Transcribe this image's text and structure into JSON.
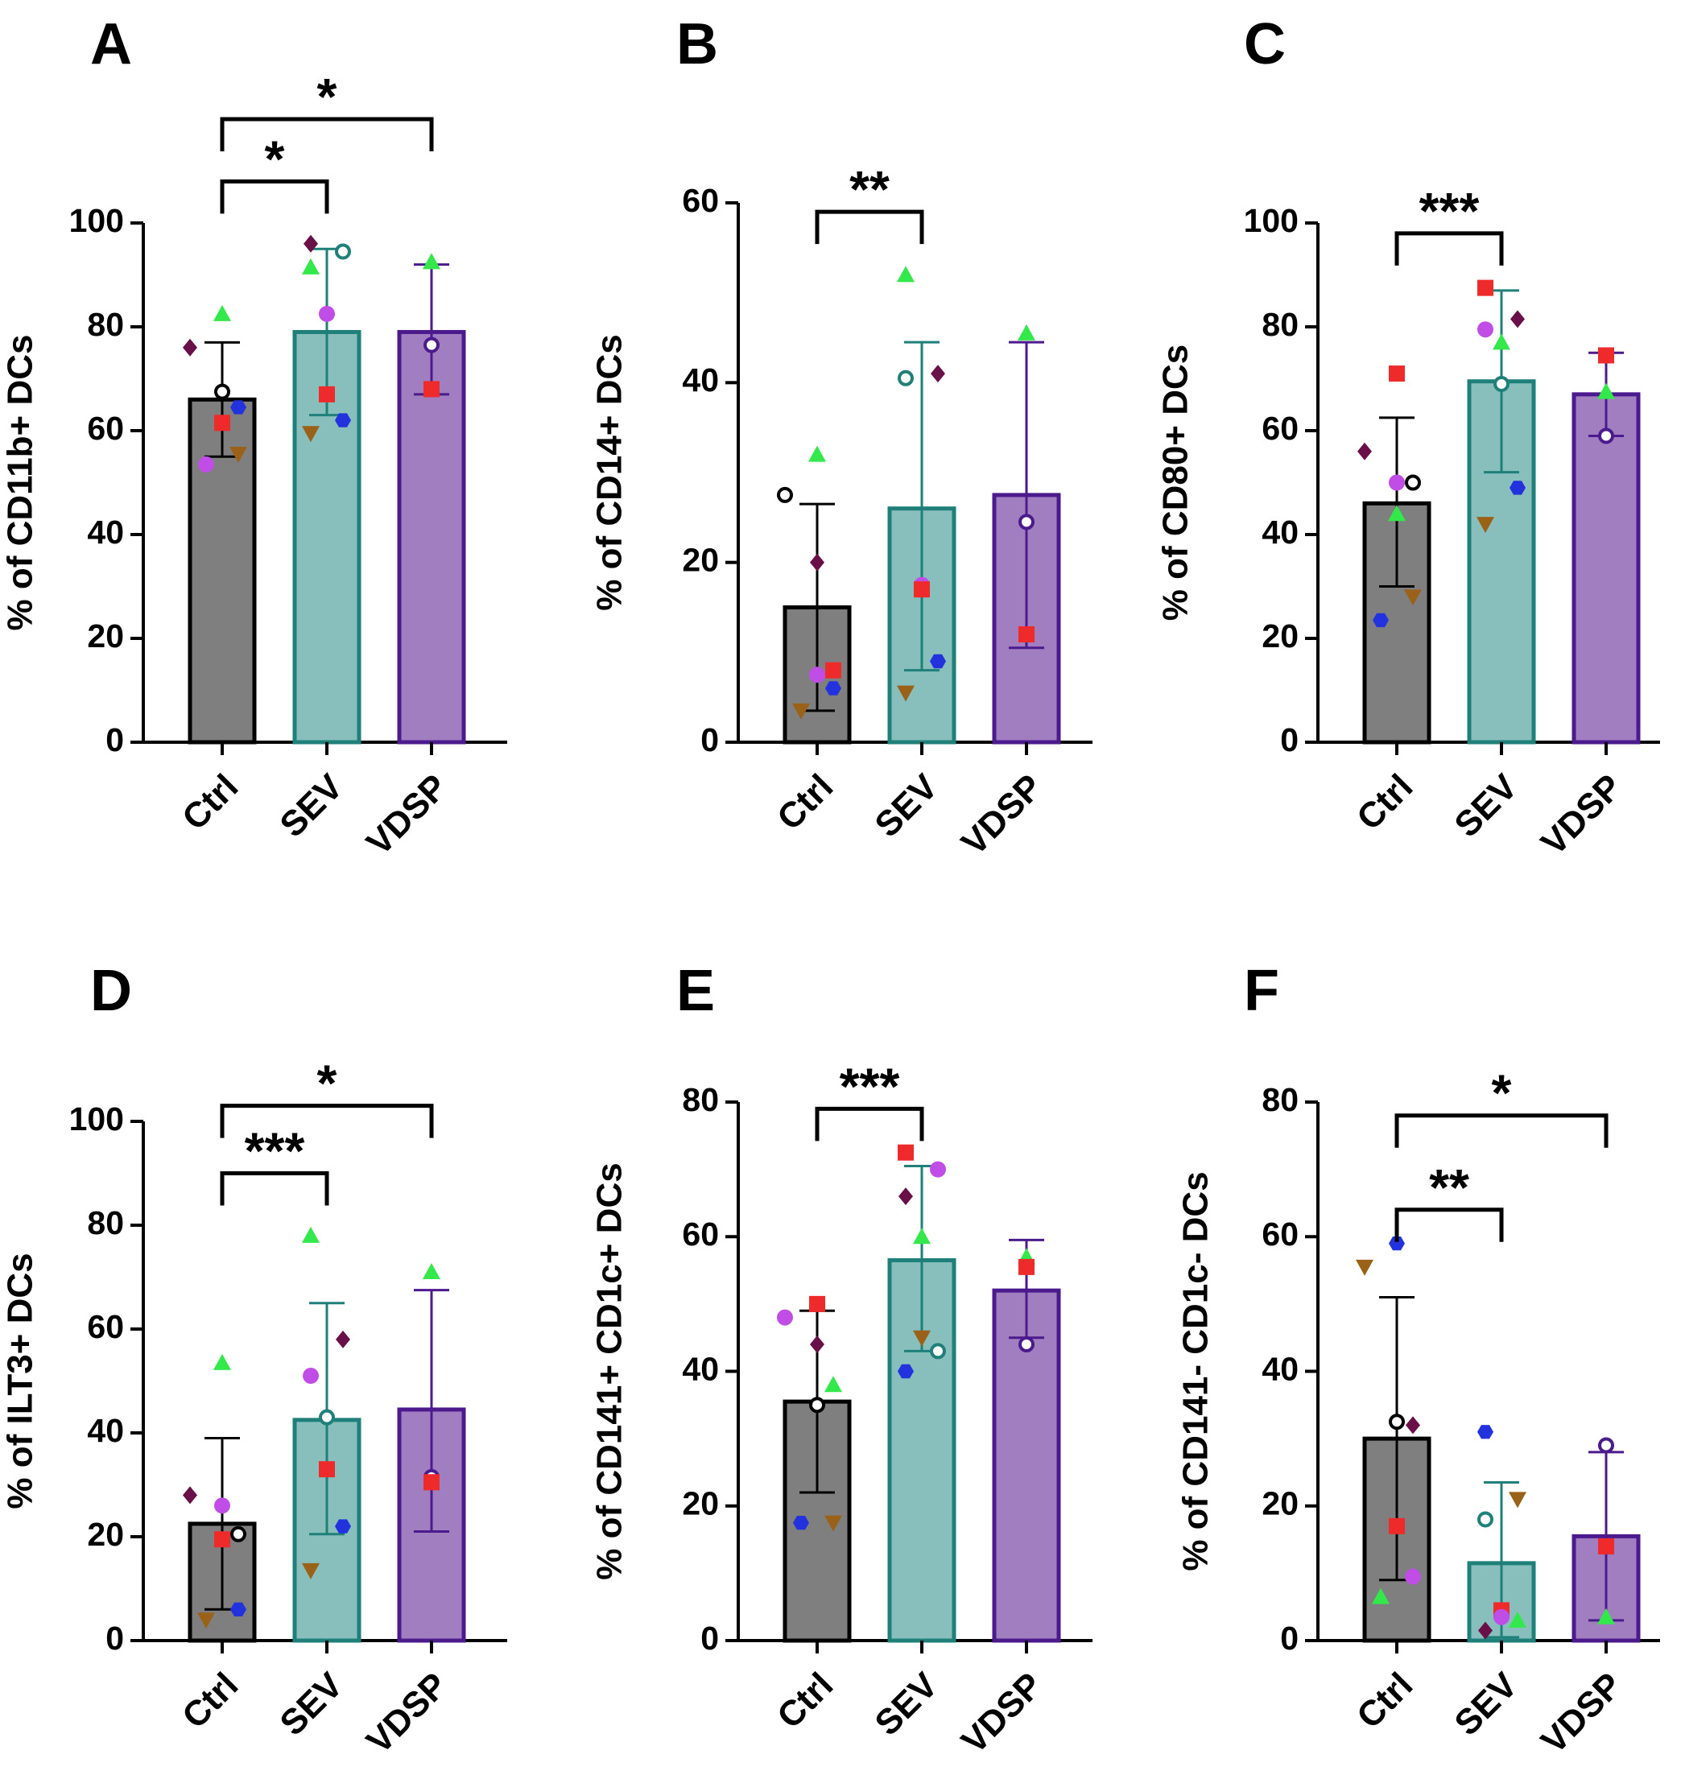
{
  "colors": {
    "ctrl_fill": "#7f7f7f",
    "ctrl_edge": "#000000",
    "sev_fill": "#88bfbc",
    "sev_edge": "#1e8079",
    "vdsp_fill": "#a07ec0",
    "vdsp_edge": "#4b1a8c",
    "red": "#ee2a2a",
    "green": "#33e84a",
    "maroon": "#6a1048",
    "blue": "#2233dd",
    "magenta": "#c04ee6",
    "brown": "#9a6218",
    "teal_open": "#1e8079",
    "purple_open": "#4b1a8c",
    "black_open": "#000000"
  },
  "chart_data": [
    {
      "panel": "A",
      "type": "bar",
      "ylabel": "% of CD11b+ DCs",
      "ylim": [
        0,
        100
      ],
      "yticks": [
        "0",
        "20",
        "40",
        "60",
        "80",
        "100"
      ],
      "categories": [
        "Ctrl",
        "SEV",
        "VDSP"
      ],
      "means": [
        66,
        79,
        79
      ],
      "err_low": [
        55,
        63,
        67
      ],
      "err_high": [
        77,
        95,
        92
      ],
      "points": [
        [
          {
            "shape": "triangle-up",
            "color": "green",
            "value": 82.5
          },
          {
            "shape": "diamond",
            "color": "maroon",
            "value": 76
          },
          {
            "shape": "circle-open",
            "color": "black_open",
            "value": 67.5
          },
          {
            "shape": "hexagon",
            "color": "blue",
            "value": 64.5
          },
          {
            "shape": "square",
            "color": "red",
            "value": 61.5
          },
          {
            "shape": "triangle-down",
            "color": "brown",
            "value": 55.5
          },
          {
            "shape": "circle",
            "color": "magenta",
            "value": 53.5
          }
        ],
        [
          {
            "shape": "diamond",
            "color": "maroon",
            "value": 96
          },
          {
            "shape": "circle-open",
            "color": "teal_open",
            "value": 94.5
          },
          {
            "shape": "triangle-up",
            "color": "green",
            "value": 91.5
          },
          {
            "shape": "circle",
            "color": "magenta",
            "value": 82.5
          },
          {
            "shape": "square",
            "color": "red",
            "value": 67
          },
          {
            "shape": "hexagon",
            "color": "blue",
            "value": 62
          },
          {
            "shape": "triangle-down",
            "color": "brown",
            "value": 59.5
          }
        ],
        [
          {
            "shape": "triangle-up",
            "color": "green",
            "value": 92.5
          },
          {
            "shape": "circle-open",
            "color": "purple_open",
            "value": 76.5
          },
          {
            "shape": "square",
            "color": "red",
            "value": 68
          }
        ]
      ],
      "brackets": [
        {
          "from": "Ctrl",
          "to": "SEV",
          "label": "*",
          "level": 108
        },
        {
          "from": "Ctrl",
          "to": "VDSP",
          "label": "*",
          "level": 120
        }
      ]
    },
    {
      "panel": "B",
      "type": "bar",
      "ylabel": "% of CD14+ DCs",
      "ylim": [
        0,
        60
      ],
      "yticks": [
        "0",
        "20",
        "40",
        "60"
      ],
      "categories": [
        "Ctrl",
        "SEV",
        "VDSP"
      ],
      "means": [
        15,
        26,
        27.5
      ],
      "err_low": [
        3.5,
        8,
        10.5
      ],
      "err_high": [
        26.5,
        44.5,
        44.5
      ],
      "points": [
        [
          {
            "shape": "triangle-up",
            "color": "green",
            "value": 32
          },
          {
            "shape": "circle-open",
            "color": "black_open",
            "value": 27.5
          },
          {
            "shape": "diamond",
            "color": "maroon",
            "value": 20
          },
          {
            "shape": "square",
            "color": "red",
            "value": 8
          },
          {
            "shape": "circle",
            "color": "magenta",
            "value": 7.5
          },
          {
            "shape": "hexagon",
            "color": "blue",
            "value": 6
          },
          {
            "shape": "triangle-down",
            "color": "brown",
            "value": 3.5
          }
        ],
        [
          {
            "shape": "triangle-up",
            "color": "green",
            "value": 52
          },
          {
            "shape": "diamond",
            "color": "maroon",
            "value": 41
          },
          {
            "shape": "circle-open",
            "color": "teal_open",
            "value": 40.5
          },
          {
            "shape": "circle",
            "color": "magenta",
            "value": 17.5
          },
          {
            "shape": "square",
            "color": "red",
            "value": 17
          },
          {
            "shape": "hexagon",
            "color": "blue",
            "value": 9
          },
          {
            "shape": "triangle-down",
            "color": "brown",
            "value": 5.5
          }
        ],
        [
          {
            "shape": "triangle-up",
            "color": "green",
            "value": 45.5
          },
          {
            "shape": "circle-open",
            "color": "purple_open",
            "value": 24.5
          },
          {
            "shape": "square",
            "color": "red",
            "value": 12
          }
        ]
      ],
      "brackets": [
        {
          "from": "Ctrl",
          "to": "SEV",
          "label": "**",
          "level": 59
        }
      ]
    },
    {
      "panel": "C",
      "type": "bar",
      "ylabel": "% of CD80+ DCs",
      "ylim": [
        0,
        100
      ],
      "yticks": [
        "0",
        "20",
        "40",
        "60",
        "80",
        "100"
      ],
      "categories": [
        "Ctrl",
        "SEV",
        "VDSP"
      ],
      "means": [
        46,
        69.5,
        67
      ],
      "err_low": [
        30,
        52,
        59
      ],
      "err_high": [
        62.5,
        87,
        75
      ],
      "points": [
        [
          {
            "shape": "square",
            "color": "red",
            "value": 71
          },
          {
            "shape": "diamond",
            "color": "maroon",
            "value": 56
          },
          {
            "shape": "circle",
            "color": "magenta",
            "value": 50
          },
          {
            "shape": "circle-open",
            "color": "black_open",
            "value": 50
          },
          {
            "shape": "triangle-up",
            "color": "green",
            "value": 44
          },
          {
            "shape": "triangle-down",
            "color": "brown",
            "value": 28
          },
          {
            "shape": "hexagon",
            "color": "blue",
            "value": 23.5
          }
        ],
        [
          {
            "shape": "square",
            "color": "red",
            "value": 87.5
          },
          {
            "shape": "diamond",
            "color": "maroon",
            "value": 81.5
          },
          {
            "shape": "circle",
            "color": "magenta",
            "value": 79.5
          },
          {
            "shape": "triangle-up",
            "color": "green",
            "value": 77
          },
          {
            "shape": "circle-open",
            "color": "teal_open",
            "value": 69
          },
          {
            "shape": "hexagon",
            "color": "blue",
            "value": 49
          },
          {
            "shape": "triangle-down",
            "color": "brown",
            "value": 42
          }
        ],
        [
          {
            "shape": "square",
            "color": "red",
            "value": 74.5
          },
          {
            "shape": "triangle-up",
            "color": "green",
            "value": 67.5
          },
          {
            "shape": "circle-open",
            "color": "purple_open",
            "value": 59
          }
        ]
      ],
      "brackets": [
        {
          "from": "Ctrl",
          "to": "SEV",
          "label": "***",
          "level": 98
        }
      ]
    },
    {
      "panel": "D",
      "type": "bar",
      "ylabel": "% of ILT3+ DCs",
      "ylim": [
        0,
        100
      ],
      "yticks": [
        "0",
        "20",
        "40",
        "60",
        "80",
        "100"
      ],
      "categories": [
        "Ctrl",
        "SEV",
        "VDSP"
      ],
      "means": [
        22.5,
        42.5,
        44.5
      ],
      "err_low": [
        6,
        20.5,
        21
      ],
      "err_high": [
        39,
        65,
        67.5
      ],
      "points": [
        [
          {
            "shape": "triangle-up",
            "color": "green",
            "value": 53.5
          },
          {
            "shape": "diamond",
            "color": "maroon",
            "value": 28
          },
          {
            "shape": "circle",
            "color": "magenta",
            "value": 26
          },
          {
            "shape": "circle-open",
            "color": "black_open",
            "value": 20.5
          },
          {
            "shape": "square",
            "color": "red",
            "value": 19.5
          },
          {
            "shape": "hexagon",
            "color": "blue",
            "value": 6
          },
          {
            "shape": "triangle-down",
            "color": "brown",
            "value": 4
          }
        ],
        [
          {
            "shape": "triangle-up",
            "color": "green",
            "value": 78
          },
          {
            "shape": "diamond",
            "color": "maroon",
            "value": 58
          },
          {
            "shape": "circle",
            "color": "magenta",
            "value": 51
          },
          {
            "shape": "circle-open",
            "color": "teal_open",
            "value": 43
          },
          {
            "shape": "square",
            "color": "red",
            "value": 33
          },
          {
            "shape": "hexagon",
            "color": "blue",
            "value": 22
          },
          {
            "shape": "triangle-down",
            "color": "brown",
            "value": 13.5
          }
        ],
        [
          {
            "shape": "triangle-up",
            "color": "green",
            "value": 71
          },
          {
            "shape": "circle-open",
            "color": "purple_open",
            "value": 31.5
          },
          {
            "shape": "square",
            "color": "red",
            "value": 30.5
          }
        ]
      ],
      "brackets": [
        {
          "from": "Ctrl",
          "to": "SEV",
          "label": "***",
          "level": 90
        },
        {
          "from": "Ctrl",
          "to": "VDSP",
          "label": "*",
          "level": 103
        }
      ]
    },
    {
      "panel": "E",
      "type": "bar",
      "ylabel": "% of CD141+ CD1c+ DCs",
      "ylim": [
        0,
        80
      ],
      "yticks": [
        "0",
        "20",
        "40",
        "60",
        "80"
      ],
      "categories": [
        "Ctrl",
        "SEV",
        "VDSP"
      ],
      "means": [
        35.5,
        56.5,
        52
      ],
      "err_low": [
        22,
        43,
        45
      ],
      "err_high": [
        49,
        70.5,
        59.5
      ],
      "points": [
        [
          {
            "shape": "square",
            "color": "red",
            "value": 50
          },
          {
            "shape": "circle",
            "color": "magenta",
            "value": 48
          },
          {
            "shape": "diamond",
            "color": "maroon",
            "value": 44
          },
          {
            "shape": "triangle-up",
            "color": "green",
            "value": 38
          },
          {
            "shape": "circle-open",
            "color": "black_open",
            "value": 35
          },
          {
            "shape": "triangle-down",
            "color": "brown",
            "value": 17.5
          },
          {
            "shape": "hexagon",
            "color": "blue",
            "value": 17.5
          }
        ],
        [
          {
            "shape": "square",
            "color": "red",
            "value": 72.5
          },
          {
            "shape": "circle",
            "color": "magenta",
            "value": 70
          },
          {
            "shape": "diamond",
            "color": "maroon",
            "value": 66
          },
          {
            "shape": "triangle-up",
            "color": "green",
            "value": 60
          },
          {
            "shape": "triangle-down",
            "color": "brown",
            "value": 45
          },
          {
            "shape": "circle-open",
            "color": "teal_open",
            "value": 43
          },
          {
            "shape": "hexagon",
            "color": "blue",
            "value": 40
          }
        ],
        [
          {
            "shape": "triangle-up",
            "color": "green",
            "value": 57
          },
          {
            "shape": "square",
            "color": "red",
            "value": 55.5
          },
          {
            "shape": "circle-open",
            "color": "purple_open",
            "value": 44
          }
        ]
      ],
      "brackets": [
        {
          "from": "Ctrl",
          "to": "SEV",
          "label": "***",
          "level": 79
        }
      ]
    },
    {
      "panel": "F",
      "type": "bar",
      "ylabel": "% of CD141- CD1c- DCs",
      "ylim": [
        0,
        80
      ],
      "yticks": [
        "0",
        "20",
        "40",
        "60",
        "80"
      ],
      "categories": [
        "Ctrl",
        "SEV",
        "VDSP"
      ],
      "means": [
        30,
        11.5,
        15.5
      ],
      "err_low": [
        9,
        0.5,
        3
      ],
      "err_high": [
        51,
        23.5,
        28
      ],
      "points": [
        [
          {
            "shape": "hexagon",
            "color": "blue",
            "value": 59
          },
          {
            "shape": "triangle-down",
            "color": "brown",
            "value": 55.5
          },
          {
            "shape": "circle-open",
            "color": "black_open",
            "value": 32.5
          },
          {
            "shape": "diamond",
            "color": "maroon",
            "value": 32
          },
          {
            "shape": "square",
            "color": "red",
            "value": 17
          },
          {
            "shape": "circle",
            "color": "magenta",
            "value": 9.5
          },
          {
            "shape": "triangle-up",
            "color": "green",
            "value": 6.5
          }
        ],
        [
          {
            "shape": "hexagon",
            "color": "blue",
            "value": 31
          },
          {
            "shape": "triangle-down",
            "color": "brown",
            "value": 21
          },
          {
            "shape": "circle-open",
            "color": "teal_open",
            "value": 18
          },
          {
            "shape": "square",
            "color": "red",
            "value": 4.5
          },
          {
            "shape": "circle",
            "color": "magenta",
            "value": 3.5
          },
          {
            "shape": "triangle-up",
            "color": "green",
            "value": 3
          },
          {
            "shape": "diamond",
            "color": "maroon",
            "value": 1.5
          }
        ],
        [
          {
            "shape": "circle-open",
            "color": "purple_open",
            "value": 29
          },
          {
            "shape": "square",
            "color": "red",
            "value": 14
          },
          {
            "shape": "triangle-up",
            "color": "green",
            "value": 3.5
          }
        ]
      ],
      "brackets": [
        {
          "from": "Ctrl",
          "to": "SEV",
          "label": "**",
          "level": 64
        },
        {
          "from": "Ctrl",
          "to": "VDSP",
          "label": "*",
          "level": 78
        }
      ]
    }
  ]
}
